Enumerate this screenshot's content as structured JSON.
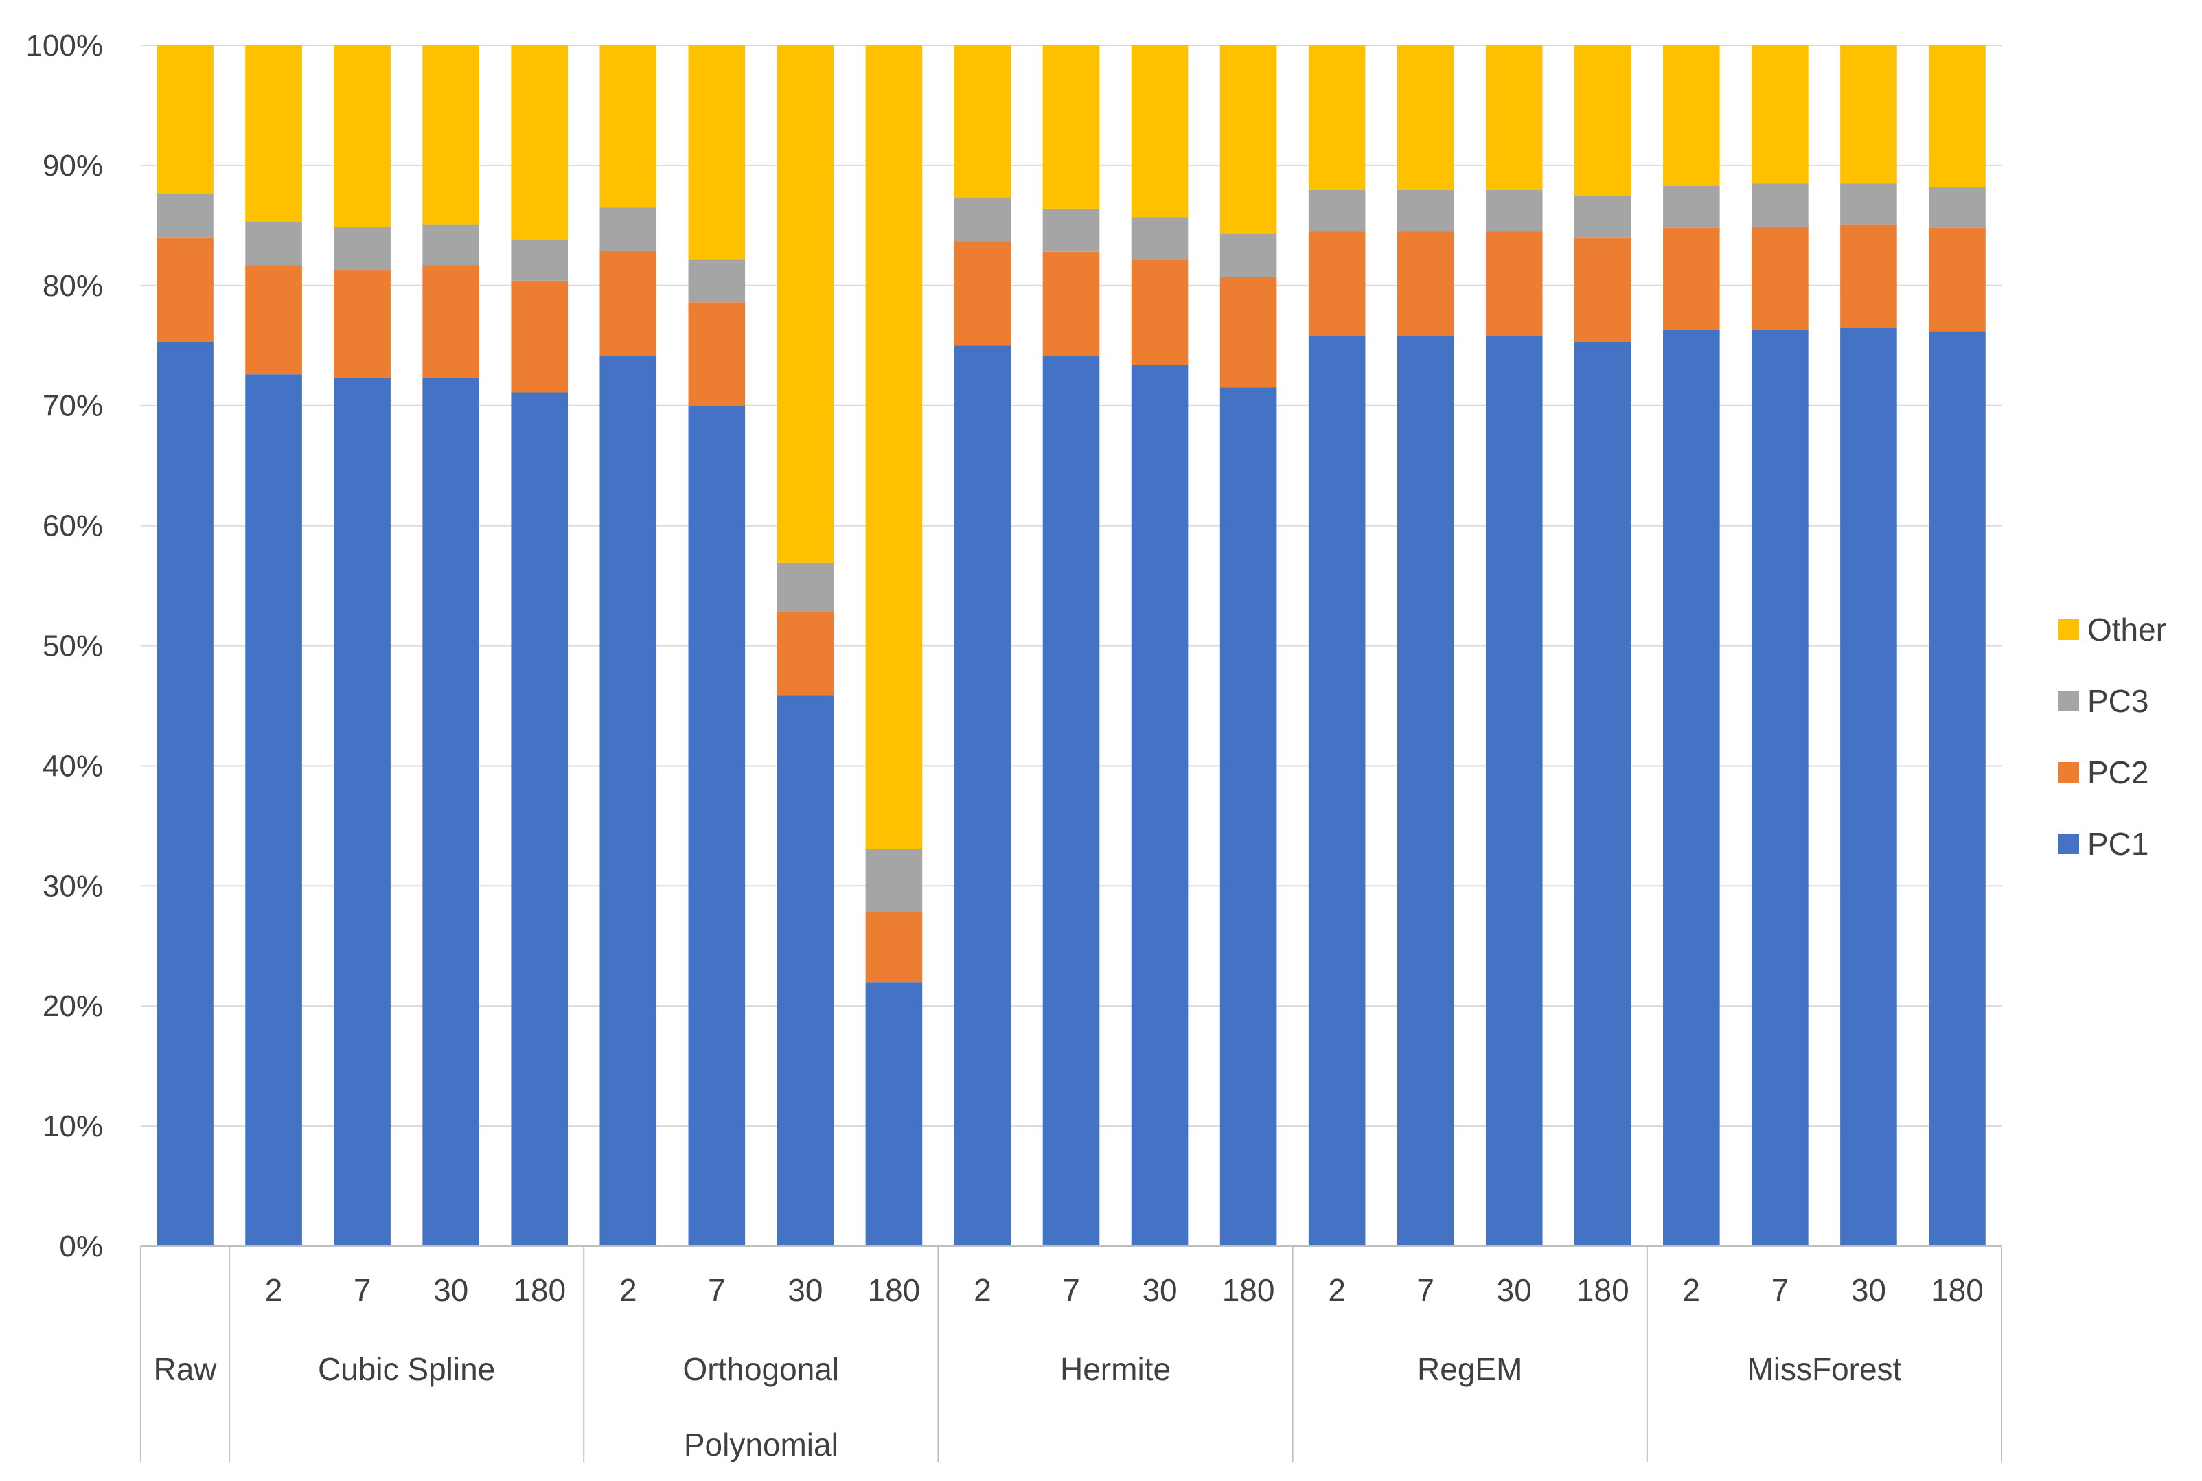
{
  "chart_data": {
    "type": "bar",
    "stacked": true,
    "percent": true,
    "title": "",
    "xlabel": "",
    "ylabel": "",
    "ylim": [
      0,
      100
    ],
    "yticks": [
      "0%",
      "10%",
      "20%",
      "30%",
      "40%",
      "50%",
      "60%",
      "70%",
      "80%",
      "90%",
      "100%"
    ],
    "groups": [
      {
        "name": [
          "Raw"
        ],
        "categories": [
          ""
        ]
      },
      {
        "name": [
          "Cubic Spline"
        ],
        "categories": [
          "2",
          "7",
          "30",
          "180"
        ]
      },
      {
        "name": [
          "Orthogonal",
          "Polynomial"
        ],
        "categories": [
          "2",
          "7",
          "30",
          "180"
        ]
      },
      {
        "name": [
          "Hermite"
        ],
        "categories": [
          "2",
          "7",
          "30",
          "180"
        ]
      },
      {
        "name": [
          "RegEM"
        ],
        "categories": [
          "2",
          "7",
          "30",
          "180"
        ]
      },
      {
        "name": [
          "MissForest"
        ],
        "categories": [
          "2",
          "7",
          "30",
          "180"
        ]
      }
    ],
    "series": [
      {
        "name": "PC1",
        "color": "#4472c4",
        "values": [
          75.3,
          72.6,
          72.3,
          72.3,
          71.1,
          74.1,
          70.0,
          45.9,
          22.0,
          75.0,
          74.1,
          73.4,
          71.5,
          75.8,
          75.8,
          75.8,
          75.3,
          76.3,
          76.3,
          76.5,
          76.2
        ]
      },
      {
        "name": "PC2",
        "color": "#ed7d31",
        "values": [
          8.7,
          9.1,
          9.0,
          9.4,
          9.3,
          8.8,
          8.6,
          6.9,
          5.8,
          8.7,
          8.7,
          8.8,
          9.2,
          8.7,
          8.7,
          8.7,
          8.7,
          8.5,
          8.6,
          8.6,
          8.6
        ]
      },
      {
        "name": "PC3",
        "color": "#a5a5a5",
        "values": [
          3.6,
          3.6,
          3.6,
          3.4,
          3.4,
          3.6,
          3.6,
          4.1,
          5.3,
          3.6,
          3.6,
          3.5,
          3.6,
          3.5,
          3.5,
          3.5,
          3.5,
          3.5,
          3.6,
          3.4,
          3.4
        ]
      },
      {
        "name": "Other",
        "color": "#ffc000",
        "values": [
          12.4,
          14.7,
          15.1,
          14.9,
          16.2,
          13.5,
          17.8,
          43.1,
          66.9,
          12.7,
          13.6,
          14.3,
          15.7,
          12.0,
          12.0,
          12.0,
          12.5,
          11.7,
          11.5,
          11.5,
          11.8
        ]
      }
    ],
    "legend": {
      "position": "right",
      "order": [
        "Other",
        "PC3",
        "PC2",
        "PC1"
      ]
    },
    "grid": true
  }
}
